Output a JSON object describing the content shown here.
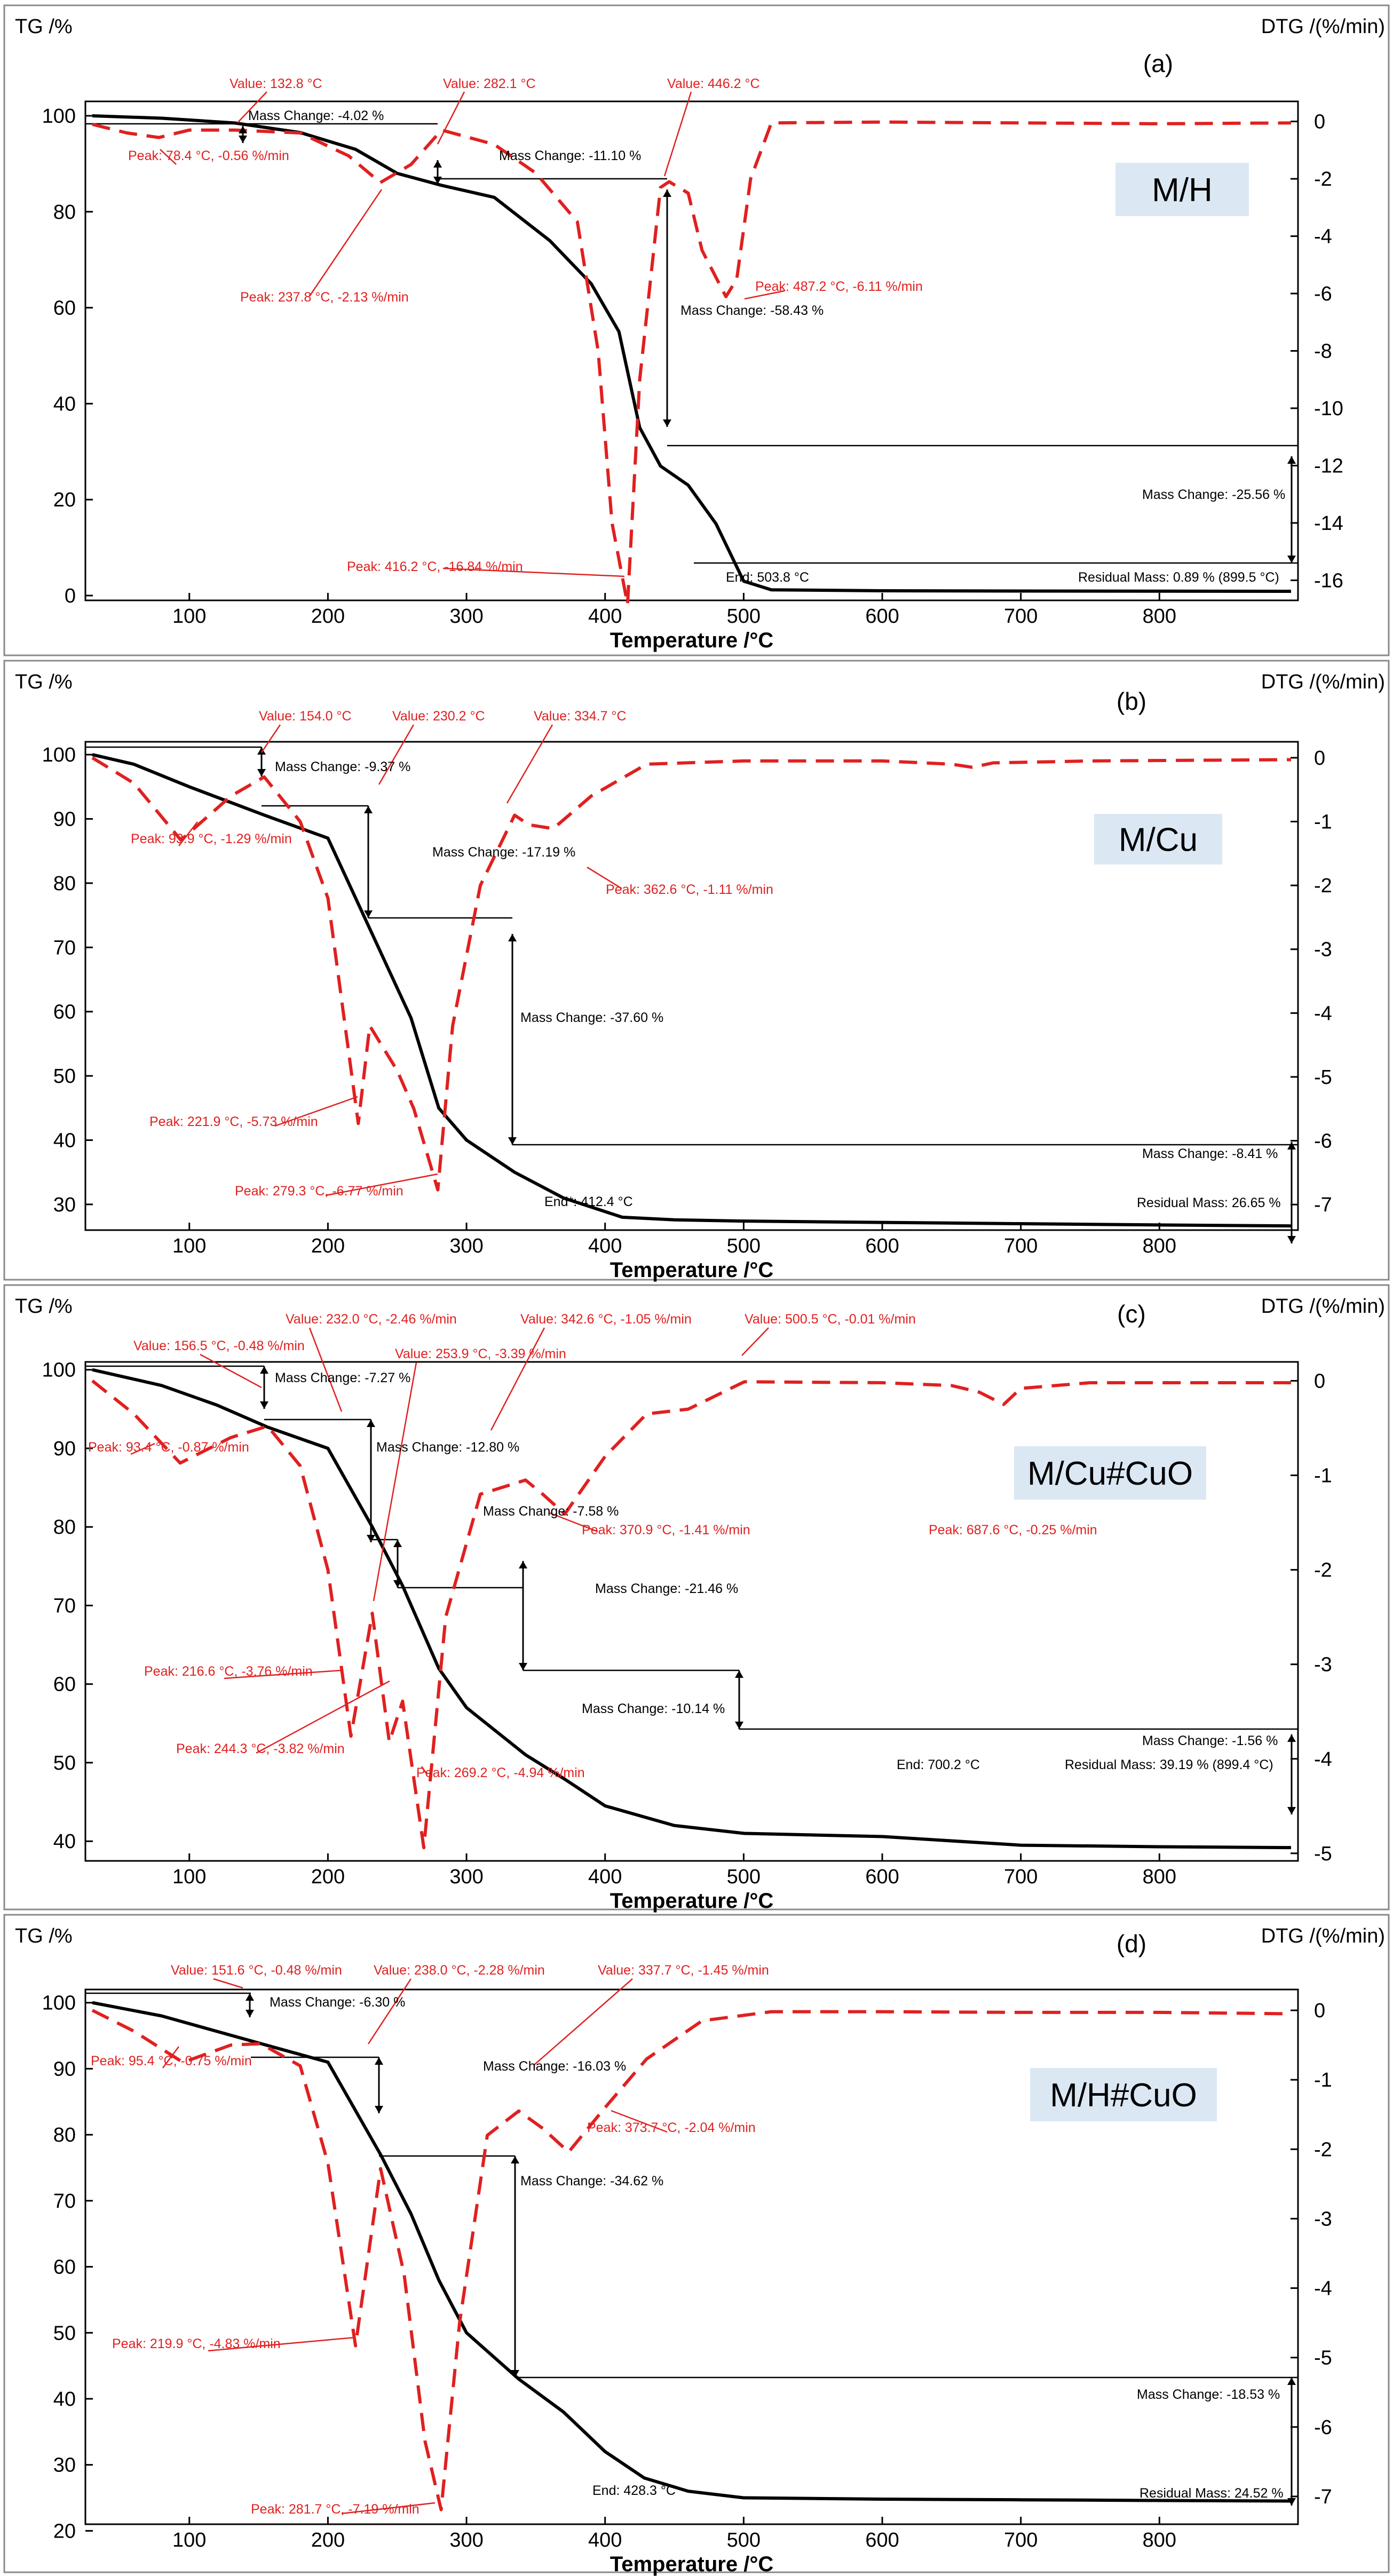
{
  "chart_data": [
    {
      "type": "line",
      "panel_label": "(a)",
      "sample": "M/H",
      "y_left_label": "TG /%",
      "y_right_label": "DTG /(%/min)",
      "x_label": "Temperature /°C",
      "x_ticks": [
        "100",
        "200",
        "300",
        "400",
        "500",
        "600",
        "700",
        "800"
      ],
      "y_left_ticks": [
        "0",
        "20",
        "40",
        "60",
        "80",
        "100"
      ],
      "y_right_ticks": [
        "0",
        "-2",
        "-4",
        "-6",
        "-8",
        "-10",
        "-12",
        "-14",
        "-16"
      ],
      "xlim": [
        25,
        900
      ],
      "ylim_left": [
        -1,
        103
      ],
      "ylim_right": [
        -16.7,
        0.7
      ],
      "series": [
        {
          "name": "TG",
          "axis": "left",
          "x": [
            30,
            80,
            133,
            180,
            220,
            250,
            282,
            320,
            360,
            390,
            410,
            425,
            440,
            460,
            480,
            500,
            520,
            600,
            700,
            800,
            895
          ],
          "y": [
            100,
            99.5,
            98.5,
            96.5,
            93,
            88,
            85.5,
            83,
            74,
            65,
            55,
            35,
            27,
            23,
            15,
            3,
            1.2,
            1,
            0.95,
            0.92,
            0.89
          ]
        },
        {
          "name": "DTG",
          "axis": "right",
          "x": [
            30,
            55,
            78,
            100,
            133,
            180,
            215,
            237.8,
            260,
            282,
            320,
            350,
            380,
            395,
            405,
            416.2,
            425,
            440,
            446.2,
            460,
            470,
            487.2,
            495,
            505,
            520,
            600,
            700,
            800,
            895
          ],
          "y": [
            -0.1,
            -0.4,
            -0.56,
            -0.3,
            -0.3,
            -0.4,
            -1.2,
            -2.13,
            -1.5,
            -0.3,
            -0.8,
            -1.8,
            -3.5,
            -8,
            -14,
            -16.84,
            -9,
            -2.3,
            -2.1,
            -2.5,
            -4.5,
            -6.11,
            -5.5,
            -2,
            -0.05,
            -0.02,
            -0.05,
            -0.08,
            -0.05
          ]
        }
      ],
      "annotations": {
        "value_labels": [
          "Value: 132.8 °C",
          "Value: 282.1 °C",
          "Value: 446.2 °C"
        ],
        "peak_labels": [
          "Peak: 78.4 °C, -0.56 %/min",
          "Peak: 237.8 °C, -2.13 %/min",
          "Peak: 416.2 °C, -16.84 %/min",
          "Peak: 487.2 °C, -6.11 %/min"
        ],
        "mass_changes": [
          "Mass Change: -4.02 %",
          "Mass Change: -11.10 %",
          "Mass Change: -58.43 %",
          "Mass Change: -25.56 %"
        ],
        "end": "End: 503.8 °C",
        "residual": "Residual Mass: 0.89 % (899.5 °C)"
      }
    },
    {
      "type": "line",
      "panel_label": "(b)",
      "sample": "M/Cu",
      "y_left_label": "TG /%",
      "y_right_label": "DTG /(%/min)",
      "x_label": "Temperature /°C",
      "x_ticks": [
        "100",
        "200",
        "300",
        "400",
        "500",
        "600",
        "700",
        "800"
      ],
      "y_left_ticks": [
        "30",
        "40",
        "50",
        "60",
        "70",
        "80",
        "90",
        "100"
      ],
      "y_right_ticks": [
        "0",
        "-1",
        "-2",
        "-3",
        "-4",
        "-5",
        "-6",
        "-7"
      ],
      "xlim": [
        25,
        900
      ],
      "ylim_left": [
        26,
        102
      ],
      "ylim_right": [
        -7.4,
        0.25
      ],
      "series": [
        {
          "name": "TG",
          "axis": "left",
          "x": [
            30,
            60,
            100,
            154,
            200,
            230,
            260,
            280,
            300,
            334.7,
            370,
            412.4,
            450,
            500,
            600,
            700,
            800,
            895
          ],
          "y": [
            100,
            98.5,
            95,
            90.6,
            87,
            73,
            59,
            45,
            40,
            35,
            31,
            28,
            27.6,
            27.4,
            27.2,
            27,
            26.8,
            26.65
          ]
        },
        {
          "name": "DTG",
          "axis": "right",
          "x": [
            30,
            60,
            93.9,
            130,
            154,
            180,
            200,
            221.9,
            230.2,
            250,
            262,
            279.3,
            290,
            310,
            334.7,
            345,
            362.6,
            390,
            430,
            500,
            600,
            650,
            665,
            680,
            750,
            895
          ],
          "y": [
            0,
            -0.4,
            -1.29,
            -0.6,
            -0.3,
            -1,
            -2.2,
            -5.73,
            -4.2,
            -4.9,
            -5.5,
            -6.77,
            -4.2,
            -2,
            -0.9,
            -1.05,
            -1.11,
            -0.6,
            -0.1,
            -0.05,
            -0.05,
            -0.1,
            -0.15,
            -0.08,
            -0.05,
            -0.03
          ]
        }
      ],
      "annotations": {
        "value_labels": [
          "Value: 154.0 °C",
          "Value: 230.2 °C",
          "Value: 334.7 °C"
        ],
        "peak_labels": [
          "Peak: 93.9 °C, -1.29 %/min",
          "Peak: 221.9 °C, -5.73 %/min",
          "Peak: 279.3 °C, -6.77 %/min",
          "Peak: 362.6 °C, -1.11 %/min"
        ],
        "mass_changes": [
          "Mass Change: -9.37 %",
          "Mass Change: -17.19 %",
          "Mass Change: -37.60 %",
          "Mass Change: -8.41 %"
        ],
        "end": "End*: 412.4 °C",
        "residual": "Residual Mass: 26.65 %"
      }
    },
    {
      "type": "line",
      "panel_label": "(c)",
      "sample": "M/Cu#CuO",
      "y_left_label": "TG /%",
      "y_right_label": "DTG /(%/min)",
      "x_label": "Temperature /°C",
      "x_ticks": [
        "100",
        "200",
        "300",
        "400",
        "500",
        "600",
        "700",
        "800"
      ],
      "y_left_ticks": [
        "40",
        "50",
        "60",
        "70",
        "80",
        "90",
        "100"
      ],
      "y_right_ticks": [
        "0",
        "-1",
        "-2",
        "-3",
        "-4",
        "-5"
      ],
      "xlim": [
        25,
        900
      ],
      "ylim_left": [
        37.5,
        101
      ],
      "ylim_right": [
        -5.08,
        0.2
      ],
      "series": [
        {
          "name": "TG",
          "axis": "left",
          "x": [
            30,
            80,
            120,
            156.5,
            200,
            232,
            253.9,
            280,
            300,
            342.6,
            370,
            400,
            450,
            500.5,
            600,
            700.2,
            800,
            895
          ],
          "y": [
            100,
            98,
            95.5,
            92.7,
            90,
            80,
            72.5,
            62,
            57,
            51,
            48,
            44.5,
            42,
            41,
            40.6,
            39.5,
            39.3,
            39.19
          ]
        },
        {
          "name": "DTG",
          "axis": "right",
          "x": [
            30,
            60,
            93.4,
            130,
            156.5,
            180,
            200,
            216.6,
            232,
            244.3,
            253.9,
            269.2,
            285,
            310,
            342.6,
            355,
            370.9,
            400,
            430,
            460,
            500.5,
            600,
            650,
            670,
            687.6,
            700,
            750,
            895
          ],
          "y": [
            0,
            -0.35,
            -0.87,
            -0.6,
            -0.48,
            -0.9,
            -2,
            -3.76,
            -2.46,
            -3.82,
            -3.39,
            -4.94,
            -2.5,
            -1.2,
            -1.05,
            -1.2,
            -1.41,
            -0.8,
            -0.35,
            -0.3,
            -0.01,
            -0.02,
            -0.05,
            -0.12,
            -0.25,
            -0.08,
            -0.02,
            -0.02
          ]
        }
      ],
      "annotations": {
        "value_labels": [
          "Value: 156.5 °C, -0.48 %/min",
          "Value: 232.0 °C, -2.46 %/min",
          "Value: 253.9 °C, -3.39 %/min",
          "Value: 342.6 °C, -1.05 %/min",
          "Value: 500.5 °C, -0.01 %/min"
        ],
        "peak_labels": [
          "Peak: 93.4 °C, -0.87 %/min",
          "Peak: 216.6 °C, -3.76 %/min",
          "Peak: 244.3 °C, -3.82 %/min",
          "Peak: 269.2 °C, -4.94 %/min",
          "Peak: 370.9 °C, -1.41 %/min",
          "Peak: 687.6 °C, -0.25 %/min"
        ],
        "mass_changes": [
          "Mass Change: -7.27 %",
          "Mass Change: -12.80 %",
          "Mass Change: -7.58 %",
          "Mass Change: -21.46 %",
          "Mass Change: -10.14 %",
          "Mass Change: -1.56 %"
        ],
        "end": "End: 700.2 °C",
        "residual": "Residual Mass: 39.19 % (899.4 °C)"
      }
    },
    {
      "type": "line",
      "panel_label": "(d)",
      "sample": "M/H#CuO",
      "y_left_label": "TG /%",
      "y_right_label": "DTG /(%/min)",
      "x_label": "Temperature /°C",
      "x_ticks": [
        "100",
        "200",
        "300",
        "400",
        "500",
        "600",
        "700",
        "800"
      ],
      "y_left_ticks": [
        "20",
        "30",
        "40",
        "50",
        "60",
        "70",
        "80",
        "90",
        "100"
      ],
      "y_right_ticks": [
        "0",
        "-1",
        "-2",
        "-3",
        "-4",
        "-5",
        "-6",
        "-7"
      ],
      "xlim": [
        25,
        900
      ],
      "ylim_left": [
        21,
        102
      ],
      "ylim_right": [
        -7.4,
        0.3
      ],
      "series": [
        {
          "name": "TG",
          "axis": "left",
          "x": [
            30,
            80,
            151.6,
            200,
            238,
            260,
            280,
            300,
            337.7,
            370,
            400,
            428.3,
            460,
            500,
            600,
            700,
            800,
            895
          ],
          "y": [
            100,
            98,
            93.8,
            91,
            77,
            68,
            58,
            50,
            43,
            38,
            32,
            28,
            26,
            25,
            24.8,
            24.7,
            24.6,
            24.52
          ]
        },
        {
          "name": "DTG",
          "axis": "right",
          "x": [
            30,
            60,
            95.4,
            130,
            151.6,
            180,
            200,
            219.9,
            238,
            255,
            270,
            281.7,
            295,
            315,
            337.7,
            355,
            373.7,
            400,
            430,
            470,
            520,
            600,
            700,
            800,
            895
          ],
          "y": [
            0,
            -0.3,
            -0.75,
            -0.5,
            -0.48,
            -0.8,
            -2.2,
            -4.83,
            -2.28,
            -3.8,
            -6.2,
            -7.19,
            -4.5,
            -1.8,
            -1.45,
            -1.7,
            -2.04,
            -1.4,
            -0.7,
            -0.15,
            -0.02,
            -0.02,
            -0.03,
            -0.03,
            -0.05
          ]
        }
      ],
      "annotations": {
        "value_labels": [
          "Value: 151.6 °C, -0.48 %/min",
          "Value: 238.0 °C, -2.28 %/min",
          "Value: 337.7 °C, -1.45 %/min"
        ],
        "peak_labels": [
          "Peak: 95.4 °C, -0.75 %/min",
          "Peak: 219.9 °C, -4.83 %/min",
          "Peak: 281.7 °C, -7.19 %/min",
          "Peak: 373.7 °C, -2.04 %/min"
        ],
        "mass_changes": [
          "Mass Change: -6.30 %",
          "Mass Change: -16.03 %",
          "Mass Change: -34.62 %",
          "Mass Change: -18.53 %"
        ],
        "end": "End: 428.3 °C",
        "residual": "Residual Mass: 24.52 %"
      }
    }
  ]
}
